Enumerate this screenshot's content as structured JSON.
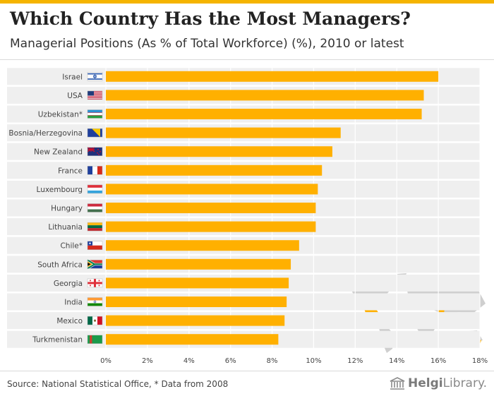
{
  "header": {
    "title": "Which Country Has the Most Managers?",
    "subtitle": "Managerial Positions (As % of Total Workforce) (%), 2010 or latest"
  },
  "footer": {
    "source": "Source: National Statistical Office, * Data from 2008",
    "brand_part1": "Helgi",
    "brand_part2": "Library."
  },
  "colors": {
    "bar": "#ffb000",
    "row_band": "#efefef",
    "grid": "#ffffff",
    "map_land": "#cfcfcf",
    "map_highlight": "#ffb000",
    "accent_bar": "#f5b400"
  },
  "chart_data": {
    "type": "bar",
    "orientation": "horizontal",
    "title": "Which Country Has the Most Managers?",
    "subtitle": "Managerial Positions (As % of Total Workforce) (%), 2010 or latest",
    "xlabel": "",
    "ylabel": "",
    "xlim": [
      0,
      18
    ],
    "xticks": [
      0,
      2,
      4,
      6,
      8,
      10,
      12,
      14,
      16,
      18
    ],
    "xtick_labels": [
      "0%",
      "2%",
      "4%",
      "6%",
      "8%",
      "10%",
      "12%",
      "14%",
      "16%",
      "18%"
    ],
    "categories": [
      "Israel",
      "USA",
      "Uzbekistan*",
      "Bosnia/Herzegovina",
      "New Zealand",
      "France",
      "Luxembourg",
      "Hungary",
      "Lithuania",
      "Chile*",
      "South Africa",
      "Georgia",
      "India",
      "Mexico",
      "Turkmenistan"
    ],
    "values": [
      16.0,
      15.3,
      15.2,
      11.3,
      10.9,
      10.4,
      10.2,
      10.1,
      10.1,
      9.3,
      8.9,
      8.8,
      8.7,
      8.6,
      8.3
    ],
    "flags": [
      "israel-flag",
      "usa-flag",
      "uzbekistan-flag",
      "bosnia-flag",
      "new-zealand-flag",
      "france-flag",
      "luxembourg-flag",
      "hungary-flag",
      "lithuania-flag",
      "chile-flag",
      "south-africa-flag",
      "georgia-flag",
      "india-flag",
      "mexico-flag",
      "turkmenistan-flag"
    ]
  }
}
